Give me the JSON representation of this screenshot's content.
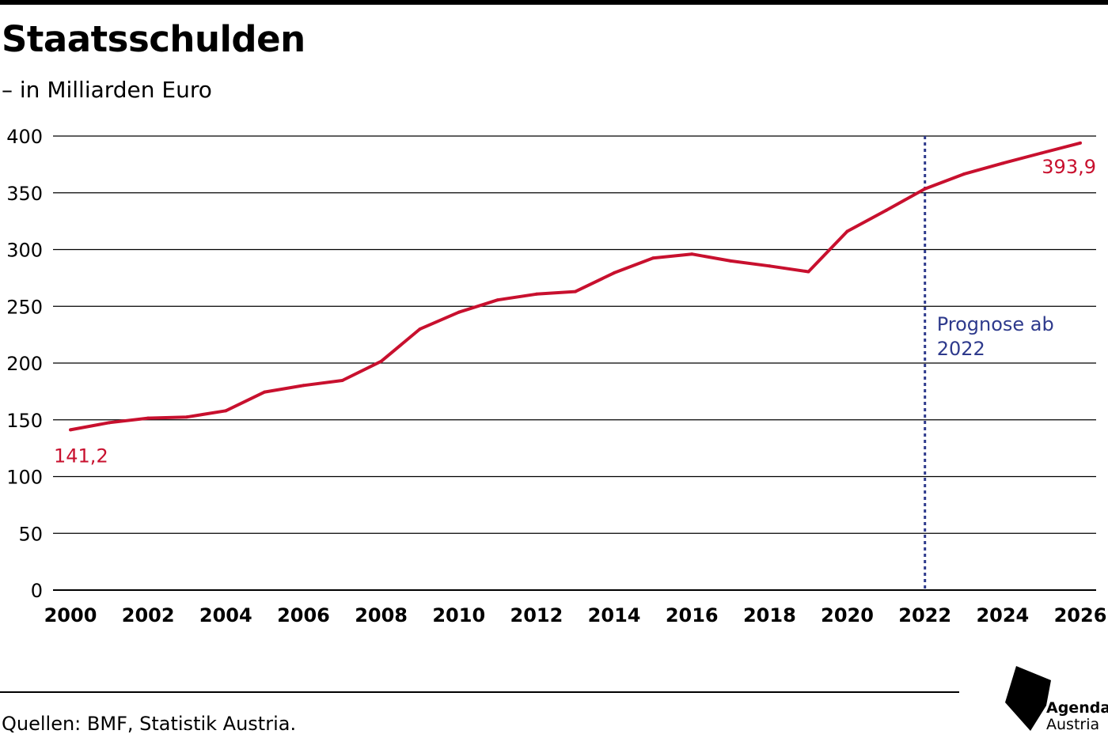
{
  "header": {
    "title": "Staatsschulden",
    "subtitle": "– in Milliarden Euro"
  },
  "footer": {
    "source": "Quellen: BMF, Statistik Austria.",
    "logo_line1": "Agenda",
    "logo_line2": "Austria"
  },
  "colors": {
    "line": "#c8102e",
    "forecast": "#2e3a8c",
    "grid": "#000000"
  },
  "chart_data": {
    "type": "line",
    "title": "Staatsschulden",
    "subtitle": "– in Milliarden Euro",
    "xlim": [
      2000,
      2026
    ],
    "ylim": [
      0,
      400
    ],
    "xticks": [
      "2000",
      "2002",
      "2004",
      "2006",
      "2008",
      "2010",
      "2012",
      "2014",
      "2016",
      "2018",
      "2020",
      "2022",
      "2024",
      "2026"
    ],
    "yticks": [
      "0",
      "50",
      "100",
      "150",
      "200",
      "250",
      "300",
      "350",
      "400"
    ],
    "grid": "horizontal",
    "series": [
      {
        "x": [
          2000,
          2001,
          2002,
          2003,
          2004,
          2005,
          2006,
          2007,
          2008,
          2009,
          2010,
          2011,
          2012,
          2013,
          2014,
          2015,
          2016,
          2017,
          2018,
          2019,
          2020,
          2021,
          2022,
          2023,
          2024,
          2025,
          2026
        ],
        "values": [
          141.2,
          147.5,
          151.5,
          152.5,
          158,
          174.5,
          180.3,
          184.7,
          201.5,
          230,
          244.8,
          255.6,
          260.8,
          263,
          279.5,
          292.5,
          296,
          290,
          285.5,
          280.5,
          316,
          334.5,
          353.5,
          366.5,
          376,
          385,
          393.9
        ]
      }
    ],
    "annotations": {
      "start_label": "141,2",
      "end_label": "393,9",
      "forecast_line_x": 2022,
      "forecast_label_line1": "Prognose ab",
      "forecast_label_line2": "2022"
    }
  }
}
